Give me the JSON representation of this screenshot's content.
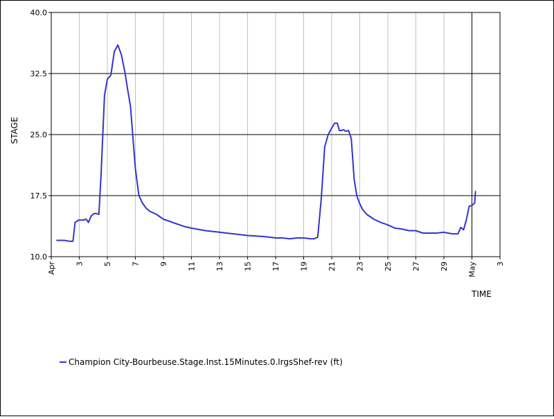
{
  "chart_data": {
    "type": "line",
    "xlabel": "TIME",
    "ylabel": "STAGE",
    "ylim": [
      10.0,
      40.0
    ],
    "xlim": [
      0.0,
      32.0
    ],
    "y_ticks": [
      {
        "value": 10.0,
        "label": "10.0"
      },
      {
        "value": 17.5,
        "label": "17.5"
      },
      {
        "value": 25.0,
        "label": "25.0"
      },
      {
        "value": 32.5,
        "label": "32.5"
      },
      {
        "value": 40.0,
        "label": "40.0"
      }
    ],
    "x_ticks": [
      {
        "value": 0,
        "label": "Apr"
      },
      {
        "value": 2,
        "label": "3"
      },
      {
        "value": 4,
        "label": "5"
      },
      {
        "value": 6,
        "label": "7"
      },
      {
        "value": 8,
        "label": "9"
      },
      {
        "value": 10,
        "label": "11"
      },
      {
        "value": 12,
        "label": "13"
      },
      {
        "value": 14,
        "label": "15"
      },
      {
        "value": 16,
        "label": "17"
      },
      {
        "value": 18,
        "label": "19"
      },
      {
        "value": 20,
        "label": "21"
      },
      {
        "value": 22,
        "label": "23"
      },
      {
        "value": 24,
        "label": "25"
      },
      {
        "value": 26,
        "label": "27"
      },
      {
        "value": 28,
        "label": "29"
      },
      {
        "value": 30,
        "label": "May"
      },
      {
        "value": 32,
        "label": "3"
      }
    ],
    "major_x_gridline": 30,
    "grid": true,
    "legend_position": "bottom-left",
    "series": [
      {
        "name": "Champion City-Bourbeuse.Stage.Inst.15Minutes.0.lrgsShef-rev (ft)",
        "color": "#3333cc",
        "x": [
          0.4,
          0.95,
          1.25,
          1.55,
          1.7,
          1.95,
          2.3,
          2.5,
          2.65,
          2.85,
          3.05,
          3.2,
          3.4,
          3.55,
          3.8,
          4.0,
          4.25,
          4.5,
          4.75,
          5.0,
          5.25,
          5.45,
          5.65,
          6.0,
          6.25,
          6.5,
          6.75,
          7.0,
          7.5,
          8.0,
          8.5,
          9.0,
          9.5,
          10.0,
          11.0,
          12.0,
          12.5,
          13.0,
          14.0,
          15.0,
          15.5,
          16.0,
          16.5,
          17.0,
          17.5,
          18.0,
          18.5,
          18.75,
          19.0,
          19.25,
          19.5,
          19.75,
          20.0,
          20.2,
          20.4,
          20.55,
          20.7,
          20.85,
          21.0,
          21.2,
          21.4,
          21.6,
          21.8,
          22.0,
          22.2,
          22.5,
          23.0,
          23.5,
          24.0,
          24.5,
          25.0,
          25.5,
          26.0,
          26.5,
          27.0,
          27.5,
          28.0,
          28.3,
          28.6,
          28.85,
          29.0,
          29.2,
          29.4,
          29.6,
          29.8,
          30.0,
          30.2,
          30.25
        ],
        "y": [
          12.0,
          12.0,
          11.9,
          11.9,
          14.2,
          14.5,
          14.5,
          14.6,
          14.2,
          15.0,
          15.3,
          15.3,
          15.2,
          20.0,
          29.8,
          31.8,
          32.3,
          35.2,
          36.0,
          34.8,
          32.7,
          30.5,
          28.5,
          20.8,
          17.5,
          16.6,
          16.0,
          15.6,
          15.2,
          14.6,
          14.3,
          14.0,
          13.7,
          13.5,
          13.2,
          13.0,
          12.9,
          12.8,
          12.6,
          12.5,
          12.4,
          12.3,
          12.3,
          12.2,
          12.3,
          12.3,
          12.2,
          12.2,
          12.4,
          17.0,
          23.5,
          25.0,
          25.8,
          26.4,
          26.4,
          25.5,
          25.5,
          25.6,
          25.4,
          25.5,
          24.5,
          19.5,
          17.4,
          16.5,
          15.8,
          15.2,
          14.6,
          14.2,
          13.9,
          13.5,
          13.4,
          13.2,
          13.2,
          12.9,
          12.9,
          12.9,
          13.0,
          12.9,
          12.8,
          12.8,
          12.8,
          13.6,
          13.3,
          14.5,
          16.2,
          16.3,
          16.6,
          18.0
        ]
      }
    ]
  }
}
